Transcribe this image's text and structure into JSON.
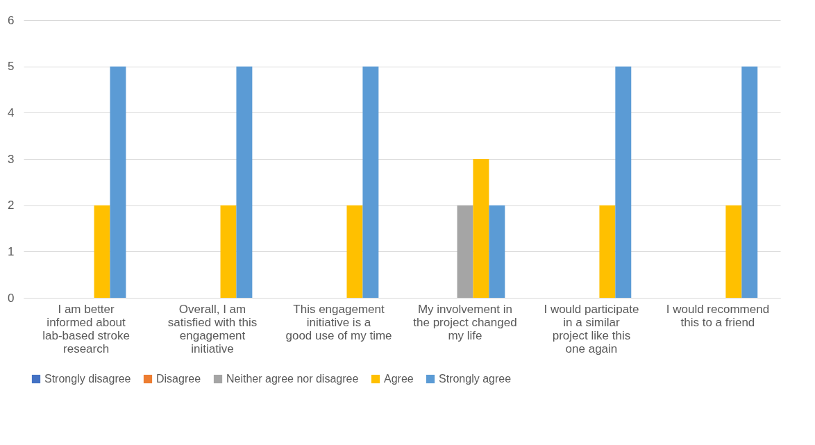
{
  "chart_data": {
    "type": "bar",
    "categories": [
      "I am better informed about lab-based stroke research",
      "Overall, I am satisfied with this engagement initiative",
      "This engagement initiative is a good use of my time",
      "My involvement in the project changed my life",
      "I would participate in a similar project like this one again",
      "I would recommend this to a friend"
    ],
    "series": [
      {
        "name": "Strongly disagree",
        "color": "#4472c4",
        "values": [
          0,
          0,
          0,
          0,
          0,
          0
        ]
      },
      {
        "name": "Disagree",
        "color": "#ed7d31",
        "values": [
          0,
          0,
          0,
          0,
          0,
          0
        ]
      },
      {
        "name": "Neither agree nor disagree",
        "color": "#a5a5a5",
        "values": [
          0,
          0,
          0,
          2,
          0,
          0
        ]
      },
      {
        "name": "Agree",
        "color": "#ffc000",
        "values": [
          2,
          2,
          2,
          3,
          2,
          2
        ]
      },
      {
        "name": "Strongly agree",
        "color": "#5b9bd5",
        "values": [
          5,
          5,
          5,
          2,
          5,
          5
        ]
      }
    ],
    "ylim": [
      0,
      6
    ],
    "yticks": [
      0,
      1,
      2,
      3,
      4,
      5,
      6
    ],
    "grid": "y",
    "legend": "bottom"
  }
}
